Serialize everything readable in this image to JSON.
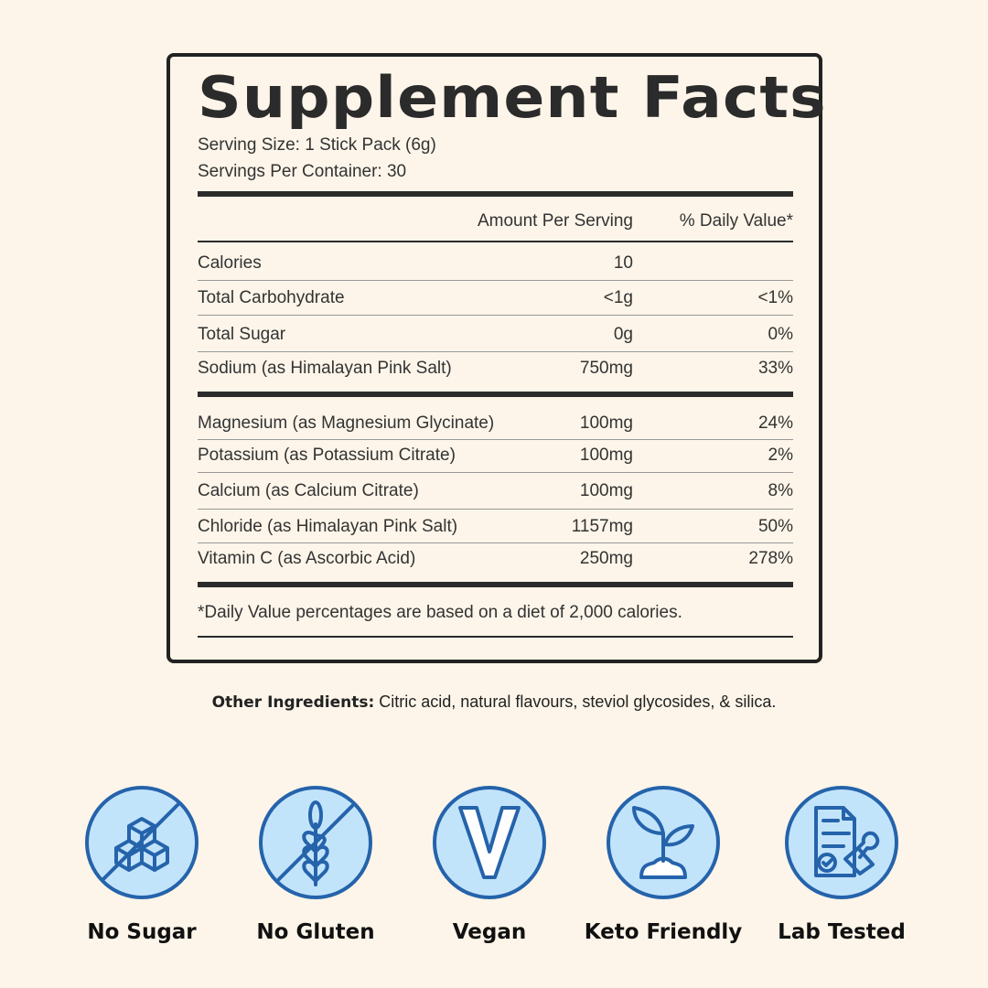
{
  "label": {
    "title": "Supplement Facts",
    "serving_size": "Serving Size: 1 Stick Pack (6g)",
    "servings_per_container": "Servings Per Container: 30",
    "header": {
      "amount": "Amount Per Serving",
      "dv": "% Daily Value*"
    },
    "rows": [
      {
        "name": "Calories",
        "amount": "10",
        "dv": ""
      },
      {
        "name": "Total Carbohydrate",
        "amount": "<1g",
        "dv": "<1%"
      },
      {
        "name": "Total Sugar",
        "amount": "0g",
        "dv": "0%"
      },
      {
        "name": "Sodium (as Himalayan Pink Salt)",
        "amount": "750mg",
        "dv": "33%"
      },
      {
        "name": "Magnesium (as Magnesium Glycinate)",
        "amount": "100mg",
        "dv": "24%"
      },
      {
        "name": "Potassium (as Potassium Citrate)",
        "amount": "100mg",
        "dv": "2%"
      },
      {
        "name": "Calcium (as Calcium Citrate)",
        "amount": "100mg",
        "dv": "8%"
      },
      {
        "name": "Chloride (as Himalayan Pink Salt)",
        "amount": "1157mg",
        "dv": "50%"
      },
      {
        "name": "Vitamin C (as Ascorbic Acid)",
        "amount": "250mg",
        "dv": "278%"
      }
    ],
    "footnote": "*Daily Value percentages are based on a diet of 2,000 calories."
  },
  "other_ingredients": {
    "label": "Other Ingredients:",
    "text": " Citric acid, natural flavours, steviol glycosides, & silica."
  },
  "badges": [
    {
      "icon": "sugar-cubes-crossed-icon",
      "label": "No Sugar"
    },
    {
      "icon": "wheat-crossed-icon",
      "label": "No Gluten"
    },
    {
      "icon": "v-letter-icon",
      "label": "Vegan"
    },
    {
      "icon": "sprout-icon",
      "label": "Keto Friendly"
    },
    {
      "icon": "document-stamp-icon",
      "label": "Lab Tested"
    }
  ],
  "colors": {
    "background": "#fdf5e9",
    "badge_fill": "#c2e4fb",
    "badge_stroke": "#2563ab",
    "label_ink": "#2b2b2b"
  }
}
